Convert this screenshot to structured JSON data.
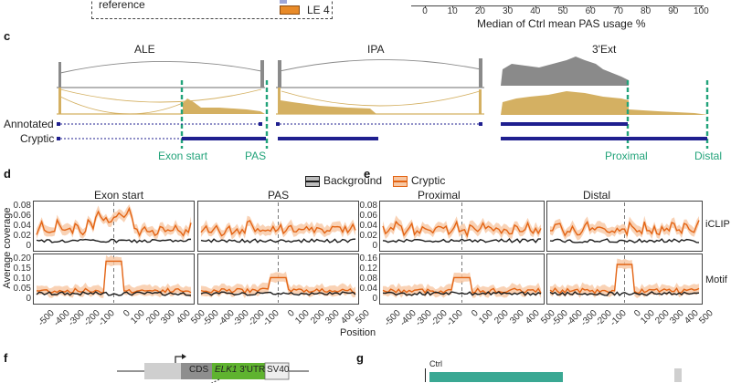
{
  "top": {
    "reference_label": "reference",
    "le4_label": "LE 4",
    "axis_ticks": [
      "0",
      "10",
      "20",
      "30",
      "40",
      "50",
      "60",
      "70",
      "80",
      "90",
      "100"
    ],
    "axis_title": "Median of Ctrl mean PAS usage %"
  },
  "panel_c": {
    "letter": "c",
    "titles": [
      "ALE",
      "IPA",
      "3'Ext"
    ],
    "row_labels": [
      "Annotated",
      "Cryptic"
    ],
    "markers": [
      "Exon start",
      "PAS",
      "Proximal",
      "Distal"
    ]
  },
  "panel_d": {
    "letter": "d"
  },
  "panel_e": {
    "letter": "e"
  },
  "legend": {
    "items": [
      "Background",
      "Cryptic"
    ]
  },
  "facets": {
    "d_titles": [
      "Exon start",
      "PAS"
    ],
    "e_titles": [
      "Proximal",
      "Distal"
    ],
    "row_strips": [
      "iCLIP",
      "Motif"
    ]
  },
  "axes": {
    "ylabel": "Average coverage",
    "xlabel": "Position",
    "iclip_left_ticks": [
      "0.08",
      "0.06",
      "0.04",
      "0.02",
      "0"
    ],
    "motif_left_ticks": [
      "0.20",
      "0.15",
      "0.10",
      "0.05",
      "0"
    ],
    "iclip_right_ticks": [
      "0.08",
      "0.06",
      "0.04",
      "0.02",
      "0"
    ],
    "motif_right_ticks": [
      "0.16",
      "0.12",
      "0.08",
      "0.04",
      "0"
    ],
    "x_ticks": [
      "-500",
      "-400",
      "-300",
      "-200",
      "-100",
      "0",
      "100",
      "200",
      "300",
      "400",
      "500"
    ]
  },
  "panel_f": {
    "letter": "f",
    "cds_label": "CDS",
    "utr_gene": "ELK1",
    "utr_suffix": " 3'UTR",
    "sv40_label": "SV40"
  },
  "panel_g": {
    "letter": "g",
    "ctrl_label": "Ctrl"
  },
  "colors": {
    "background": "#1a1a1a",
    "cryptic": "#e36414",
    "green": "#22a37a",
    "gold": "#d4b062",
    "gray": "#8a8a8a",
    "navy": "#1f1f8f",
    "teal": "#3aa893"
  }
}
